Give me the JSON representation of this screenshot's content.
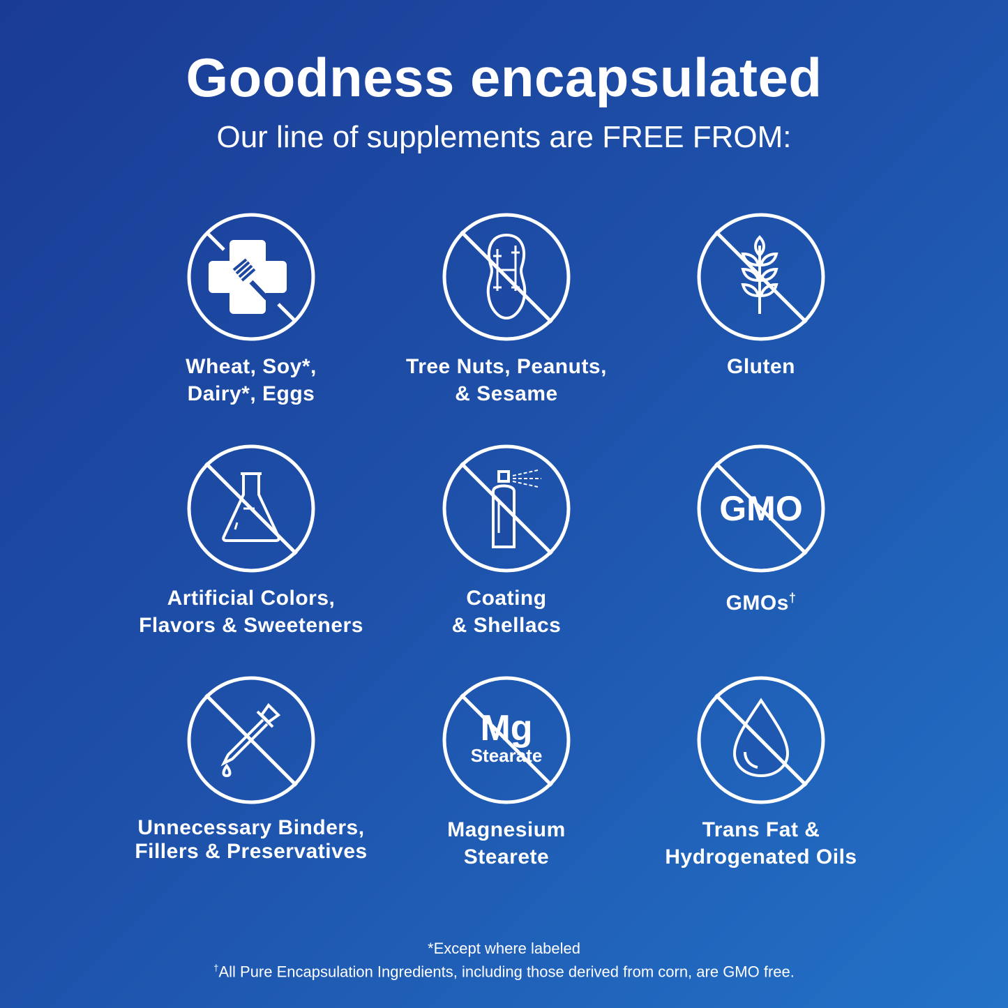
{
  "header": {
    "title": "Goodness encapsulated",
    "subtitle": "Our line of supplements are FREE FROM:"
  },
  "items": [
    {
      "icon": "allergen-cross-fork-icon",
      "line1": "Wheat, Soy*,",
      "line2": "Dairy*, Eggs"
    },
    {
      "icon": "peanut-icon",
      "line1": "Tree Nuts, Peanuts,",
      "line2": "& Sesame"
    },
    {
      "icon": "wheat-icon",
      "line1": "Gluten",
      "line2": ""
    },
    {
      "icon": "flask-icon",
      "line1": "Artificial Colors,",
      "line2": "Flavors & Sweeteners"
    },
    {
      "icon": "spray-can-icon",
      "line1": "Coating",
      "line2": "& Shellacs"
    },
    {
      "icon": "gmo-icon",
      "icon_text": "GMO",
      "line1": "GMOs",
      "line1_sup": "†",
      "line2": ""
    },
    {
      "icon": "dropper-icon",
      "line1": "Unnecessary Binders,",
      "line2": "Fillers & Preservatives"
    },
    {
      "icon": "mg-stearate-icon",
      "icon_text": "Mg",
      "icon_subtext": "Stearate",
      "line1": "Magnesium",
      "line2": "Stearete"
    },
    {
      "icon": "oil-drop-icon",
      "line1": "Trans Fat &",
      "line2": "Hydrogenated Oils"
    }
  ],
  "footer": {
    "note1": "*Except where labeled",
    "note2_mark": "†",
    "note2": "All Pure Encapsulation Ingredients, including those derived from corn, are GMO free."
  },
  "colors": {
    "bg_start": "#1a3b95",
    "bg_end": "#2372c8",
    "foreground": "#ffffff"
  }
}
